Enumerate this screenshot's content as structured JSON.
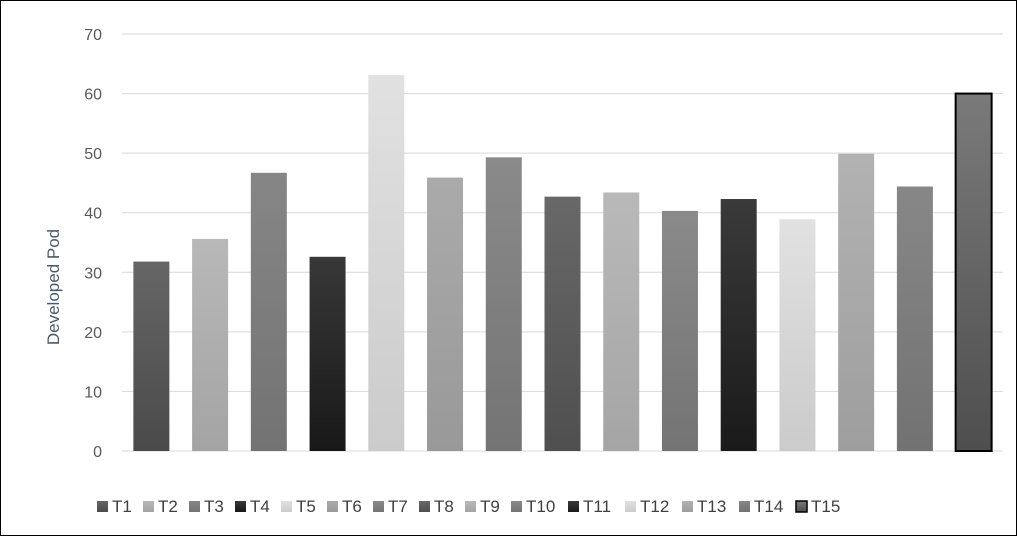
{
  "chart_data": {
    "type": "bar",
    "ylabel": "Developed Pod",
    "xlabel": "",
    "ylim": [
      0,
      70
    ],
    "y_ticks": [
      0,
      10,
      20,
      30,
      40,
      50,
      60,
      70
    ],
    "grid": true,
    "legend_position": "bottom",
    "categories": [
      "T1",
      "T2",
      "T3",
      "T4",
      "T5",
      "T6",
      "T7",
      "T8",
      "T9",
      "T10",
      "T11",
      "T12",
      "T13",
      "T14",
      "T15"
    ],
    "values": [
      31.8,
      35.6,
      46.7,
      32.6,
      63.1,
      45.9,
      49.3,
      42.7,
      43.4,
      40.3,
      42.3,
      38.9,
      49.9,
      44.4,
      60.0
    ],
    "colors": [
      {
        "top": "#666666",
        "bottom": "#4a4a4a"
      },
      {
        "top": "#b8b8b8",
        "bottom": "#a4a4a4"
      },
      {
        "top": "#868686",
        "bottom": "#737373"
      },
      {
        "top": "#383838",
        "bottom": "#181818"
      },
      {
        "top": "#e1e1e1",
        "bottom": "#cbcbcb"
      },
      {
        "top": "#aaaaaa",
        "bottom": "#999999"
      },
      {
        "top": "#8a8a8a",
        "bottom": "#747474"
      },
      {
        "top": "#686868",
        "bottom": "#4f4f4f"
      },
      {
        "top": "#b9b9b9",
        "bottom": "#a5a5a5"
      },
      {
        "top": "#8a8a8a",
        "bottom": "#747474"
      },
      {
        "top": "#3a3a3a",
        "bottom": "#1a1a1a"
      },
      {
        "top": "#e1e1e1",
        "bottom": "#cbcbcb"
      },
      {
        "top": "#b2b2b2",
        "bottom": "#9e9e9e"
      },
      {
        "top": "#878787",
        "bottom": "#727272"
      },
      {
        "top": "#7a7a7a",
        "bottom": "#4e4e4e"
      }
    ],
    "highlight": {
      "category": "T15",
      "outline": "#000000"
    },
    "grid_color": "#d9d9d9"
  }
}
